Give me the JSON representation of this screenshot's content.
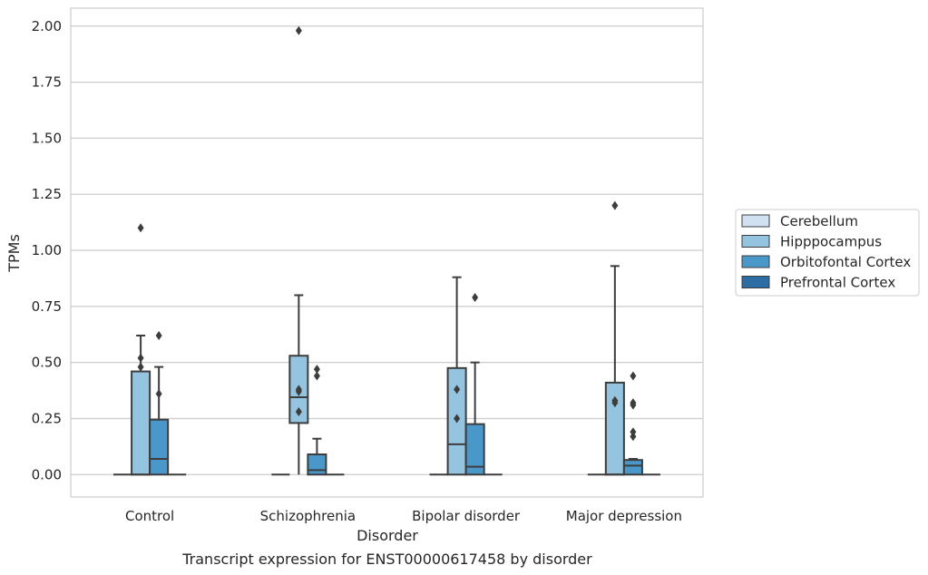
{
  "chart_data": {
    "type": "box",
    "xlabel": "Disorder",
    "ylabel": "TPMs",
    "caption": "Transcript expression for ENST00000617458 by disorder",
    "ylim": [
      -0.1,
      2.08
    ],
    "yticks": [
      "0.00",
      "0.25",
      "0.50",
      "0.75",
      "1.00",
      "1.25",
      "1.50",
      "1.75",
      "2.00"
    ],
    "ytick_values": [
      0,
      0.25,
      0.5,
      0.75,
      1.0,
      1.25,
      1.5,
      1.75,
      2.0
    ],
    "grid": "horizontal",
    "legend_position": "right",
    "categories": [
      "Control",
      "Schizophrenia",
      "Bipolar disorder",
      "Major depression"
    ],
    "series": [
      {
        "name": "Cerebellum",
        "color": "#d0e1f2",
        "boxes": [
          {
            "q1": 0,
            "median": 0,
            "q3": 0,
            "whisker_low": 0,
            "whisker_high": 0,
            "outliers": []
          },
          {
            "q1": 0,
            "median": 0,
            "q3": 0,
            "whisker_low": 0,
            "whisker_high": 0,
            "outliers": []
          },
          {
            "q1": 0,
            "median": 0,
            "q3": 0,
            "whisker_low": 0,
            "whisker_high": 0,
            "outliers": []
          },
          {
            "q1": 0,
            "median": 0,
            "q3": 0,
            "whisker_low": 0,
            "whisker_high": 0,
            "outliers": []
          }
        ]
      },
      {
        "name": "Hipppocampus",
        "color": "#94c4df",
        "boxes": [
          {
            "q1": 0,
            "median": 0,
            "q3": 0.46,
            "whisker_low": 0,
            "whisker_high": 0.62,
            "outliers": [
              0.48,
              0.52,
              1.1
            ]
          },
          {
            "q1": 0.23,
            "median": 0.345,
            "q3": 0.53,
            "whisker_low": 0,
            "whisker_high": 0.8,
            "outliers": [
              0.28,
              0.37,
              0.38,
              1.98
            ]
          },
          {
            "q1": 0,
            "median": 0.135,
            "q3": 0.475,
            "whisker_low": 0,
            "whisker_high": 0.88,
            "outliers": [
              0.25,
              0.38
            ]
          },
          {
            "q1": 0,
            "median": 0,
            "q3": 0.41,
            "whisker_low": 0,
            "whisker_high": 0.93,
            "outliers": [
              0.32,
              0.33,
              1.2
            ]
          }
        ]
      },
      {
        "name": "Orbitofontal Cortex",
        "color": "#4a98c9",
        "boxes": [
          {
            "q1": 0,
            "median": 0.07,
            "q3": 0.245,
            "whisker_low": 0,
            "whisker_high": 0.48,
            "outliers": [
              0.36,
              0.62
            ]
          },
          {
            "q1": 0,
            "median": 0.02,
            "q3": 0.09,
            "whisker_low": 0,
            "whisker_high": 0.16,
            "outliers": [
              0.44,
              0.47
            ]
          },
          {
            "q1": 0,
            "median": 0.035,
            "q3": 0.225,
            "whisker_low": 0,
            "whisker_high": 0.5,
            "outliers": [
              0.79
            ]
          },
          {
            "q1": 0,
            "median": 0.04,
            "q3": 0.065,
            "whisker_low": 0,
            "whisker_high": 0.07,
            "outliers": [
              0.17,
              0.19,
              0.31,
              0.32,
              0.44
            ]
          }
        ]
      },
      {
        "name": "Prefrontal Cortex",
        "color": "#2e6da4",
        "boxes": [
          {
            "q1": 0,
            "median": 0,
            "q3": 0,
            "whisker_low": 0,
            "whisker_high": 0,
            "outliers": []
          },
          {
            "q1": 0,
            "median": 0,
            "q3": 0,
            "whisker_low": 0,
            "whisker_high": 0,
            "outliers": []
          },
          {
            "q1": 0,
            "median": 0,
            "q3": 0,
            "whisker_low": 0,
            "whisker_high": 0,
            "outliers": []
          },
          {
            "q1": 0,
            "median": 0,
            "q3": 0,
            "whisker_low": 0,
            "whisker_high": 0,
            "outliers": []
          }
        ]
      }
    ],
    "colors": {
      "grid": "#cccccc",
      "frame": "#cccccc",
      "line": "#3d3d3d",
      "text": "#262626"
    }
  }
}
